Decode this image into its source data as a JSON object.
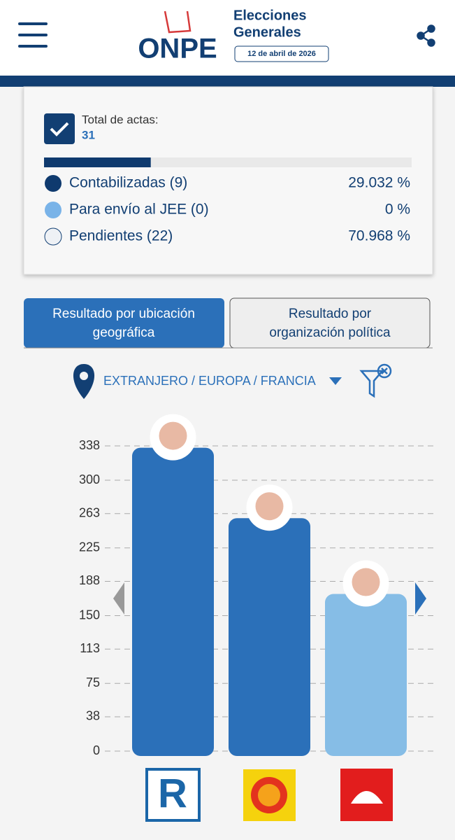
{
  "header": {
    "logo": "ONPE",
    "title_line1": "Elecciones",
    "title_line2": "Generales",
    "date": "12 de abril de 2026"
  },
  "summary": {
    "label": "Total de actas:",
    "total": "31",
    "items": [
      {
        "label": "Contabilizadas (9)",
        "percent": {
          "value": 29.032,
          "label": "29.032 %"
        },
        "color": "#0f3a6e"
      },
      {
        "label": "Para envío al JEE (0)",
        "percent": {
          "value": 0,
          "label": "0 %"
        },
        "color": "#79b3e8"
      },
      {
        "label": "Pendientes (22)",
        "percent": {
          "value": 70.968,
          "label": "70.968 %"
        },
        "color": "#eef1f5"
      }
    ]
  },
  "tabs": [
    {
      "label_line1": "Resultado por ubicación",
      "label_line2": "geográfica"
    },
    {
      "label_line1": "Resultado por",
      "label_line2": "organización política"
    }
  ],
  "location": "EXTRANJERO / EUROPA / FRANCIA",
  "chart_data": {
    "type": "bar",
    "categories": [
      null,
      null,
      null
    ],
    "values": [
      336,
      258,
      174
    ],
    "colors": [
      "#2b70b9",
      "#2b70b9",
      "#86bde6"
    ],
    "ylim": [
      0,
      338
    ],
    "yticks": [
      0,
      38,
      75,
      113,
      150,
      188,
      225,
      263,
      300,
      338
    ],
    "grid": true
  }
}
